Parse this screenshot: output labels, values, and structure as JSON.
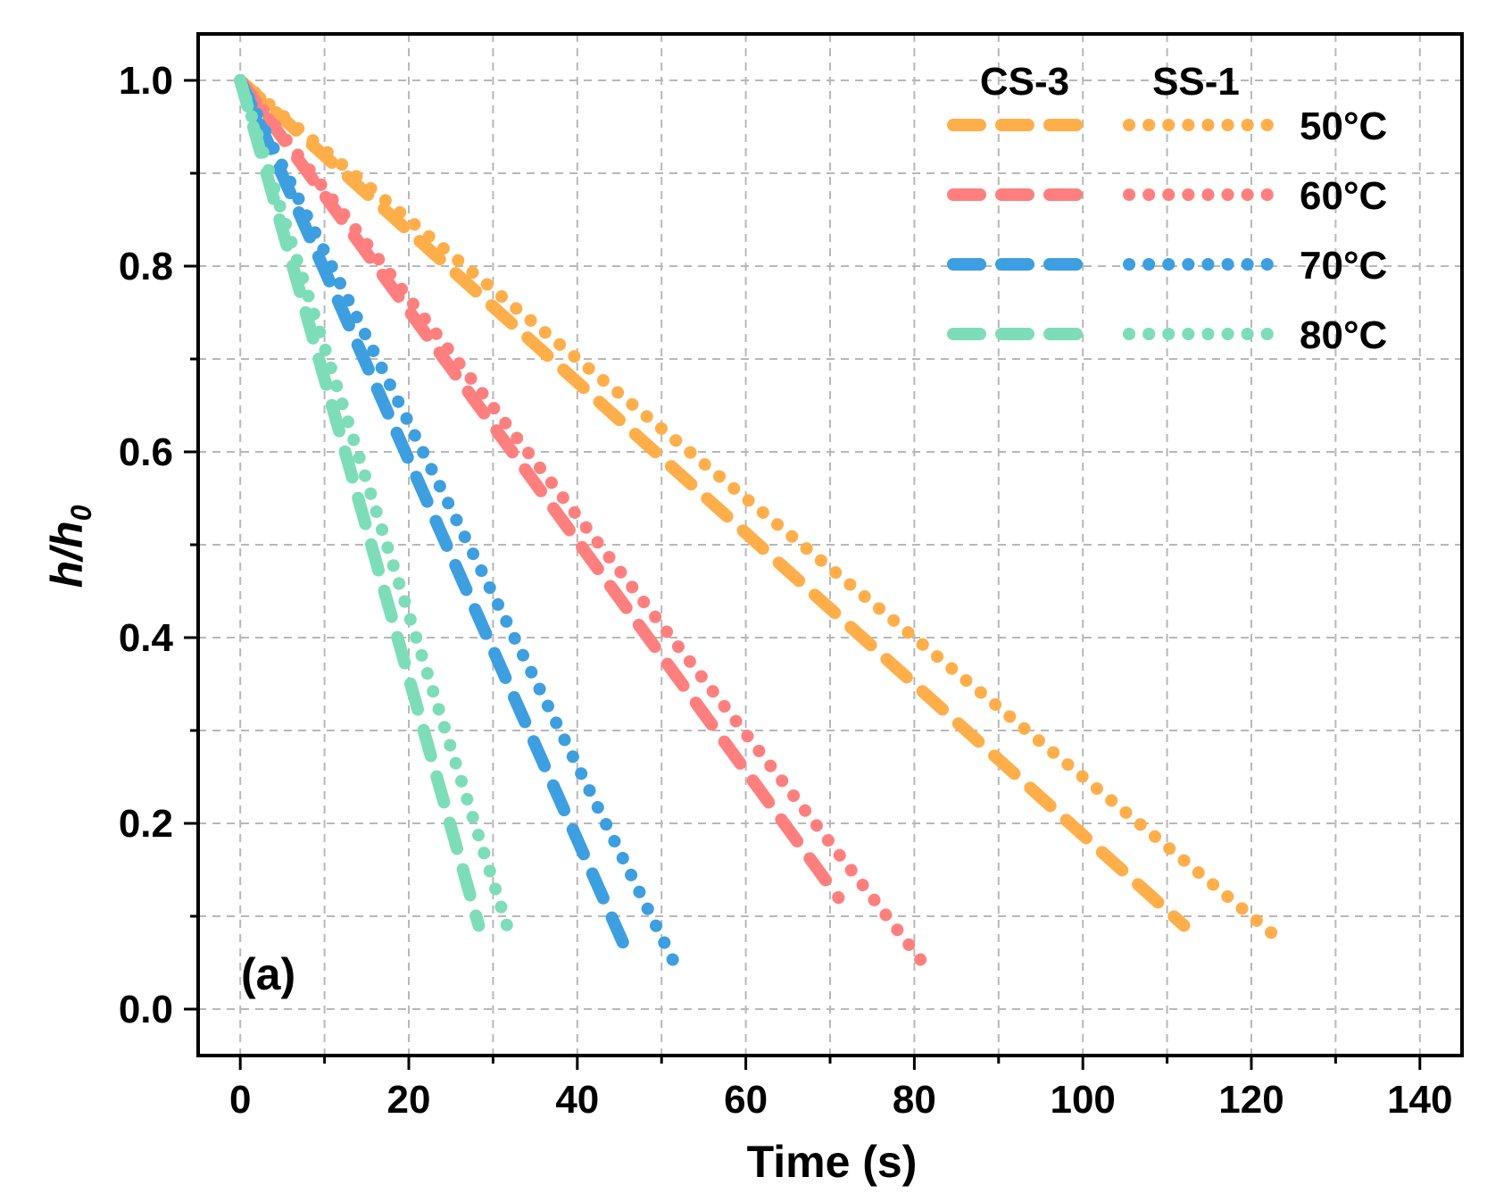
{
  "chart_data": {
    "type": "line",
    "panel_label": "(a)",
    "xlabel": "Time (s)",
    "ylabel": "h/h",
    "ylabel_subscript": "0",
    "xlim": [
      -5,
      145
    ],
    "ylim": [
      -0.05,
      1.05
    ],
    "x_ticks": [
      "0",
      "20",
      "40",
      "60",
      "80",
      "100",
      "120",
      "140"
    ],
    "y_ticks": [
      "0.0",
      "0.2",
      "0.4",
      "0.6",
      "0.8",
      "1.0"
    ],
    "grid": true,
    "legend_position": "top-right",
    "legend_column_headers": [
      "CS-3",
      "SS-1"
    ],
    "legend_rows": [
      "50°C",
      "60°C",
      "70°C",
      "80°C"
    ],
    "series": [
      {
        "name": "CS-3 50°C",
        "color": "#FFAE4A",
        "style": "dashed",
        "x": [
          0,
          112
        ],
        "y": [
          1.0,
          0.09
        ]
      },
      {
        "name": "SS-1 50°C",
        "color": "#FFAE4A",
        "style": "dotted",
        "x": [
          0,
          124
        ],
        "y": [
          1.0,
          0.07
        ]
      },
      {
        "name": "CS-3 60°C",
        "color": "#FF7F7F",
        "style": "dashed",
        "x": [
          0,
          71
        ],
        "y": [
          1.0,
          0.12
        ]
      },
      {
        "name": "SS-1 60°C",
        "color": "#FF7F7F",
        "style": "dotted",
        "x": [
          0,
          81
        ],
        "y": [
          1.0,
          0.05
        ]
      },
      {
        "name": "CS-3 70°C",
        "color": "#3D9FE0",
        "style": "dashed",
        "x": [
          0,
          45.5
        ],
        "y": [
          1.0,
          0.07
        ]
      },
      {
        "name": "SS-1 70°C",
        "color": "#3D9FE0",
        "style": "dotted",
        "x": [
          0,
          51.5
        ],
        "y": [
          1.0,
          0.05
        ]
      },
      {
        "name": "CS-3 80°C",
        "color": "#7DDDB8",
        "style": "dashed",
        "x": [
          0,
          28.3
        ],
        "y": [
          1.0,
          0.09
        ]
      },
      {
        "name": "SS-1 80°C",
        "color": "#7DDDB8",
        "style": "dotted",
        "x": [
          0,
          32
        ],
        "y": [
          1.0,
          0.08
        ]
      }
    ]
  }
}
